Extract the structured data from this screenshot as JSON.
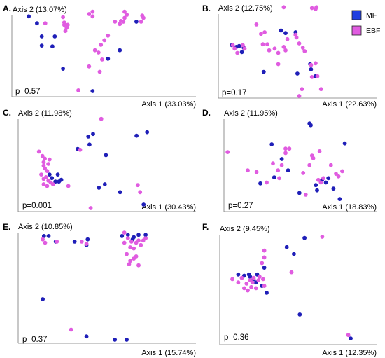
{
  "figure": {
    "legend": [
      {
        "key": "MF",
        "label": "MF",
        "color": "#1f1fb8"
      },
      {
        "key": "EBF",
        "label": "EBF",
        "color": "#e05ce0"
      }
    ],
    "legend_placement": "top-right"
  },
  "chart_data": [
    {
      "type": "scatter",
      "panel": "A.",
      "ylabel": "Axis 2 (13.07%)",
      "xlabel": "Axis 1 (33.03%)",
      "pvalue": "p=0.57",
      "series": [
        {
          "name": "MF",
          "points": [
            [
              0.03,
              0.97
            ],
            [
              0.1,
              0.88
            ],
            [
              0.14,
              0.71
            ],
            [
              0.14,
              0.59
            ],
            [
              0.23,
              0.58
            ],
            [
              0.25,
              0.71
            ],
            [
              0.32,
              0.29
            ],
            [
              0.57,
              0.0
            ],
            [
              0.7,
              0.42
            ],
            [
              0.8,
              0.53
            ],
            [
              0.94,
              0.9
            ]
          ]
        },
        {
          "name": "EBF",
          "points": [
            [
              0.17,
              0.88
            ],
            [
              0.32,
              0.96
            ],
            [
              0.33,
              0.89
            ],
            [
              0.33,
              0.86
            ],
            [
              0.35,
              0.82
            ],
            [
              0.34,
              0.78
            ],
            [
              0.36,
              0.86
            ],
            [
              0.54,
              1.0
            ],
            [
              0.57,
              1.03
            ],
            [
              0.57,
              0.97
            ],
            [
              0.45,
              0.01
            ],
            [
              0.54,
              0.32
            ],
            [
              0.59,
              0.53
            ],
            [
              0.62,
              0.5
            ],
            [
              0.65,
              0.41
            ],
            [
              0.63,
              0.25
            ],
            [
              0.64,
              0.6
            ],
            [
              0.67,
              0.66
            ],
            [
              0.7,
              0.72
            ],
            [
              0.76,
              0.9
            ],
            [
              0.8,
              0.87
            ],
            [
              0.81,
              0.91
            ],
            [
              0.83,
              0.9
            ],
            [
              0.84,
              0.95
            ],
            [
              0.86,
              0.99
            ],
            [
              0.84,
              1.03
            ],
            [
              0.98,
              0.9
            ],
            [
              1.0,
              0.95
            ],
            [
              0.99,
              0.98
            ]
          ]
        }
      ]
    },
    {
      "type": "scatter",
      "panel": "B.",
      "ylabel": "Axis 2 (12.75%)",
      "xlabel": "Axis 1 (22.63%)",
      "pvalue": "p=0.17",
      "series": [
        {
          "name": "MF",
          "points": [
            [
              0.01,
              0.59
            ],
            [
              0.06,
              0.57
            ],
            [
              0.09,
              0.58
            ],
            [
              0.12,
              0.51
            ],
            [
              0.14,
              0.56
            ],
            [
              0.36,
              0.28
            ],
            [
              0.55,
              0.76
            ],
            [
              0.6,
              0.73
            ],
            [
              0.71,
              0.74
            ],
            [
              0.73,
              0.26
            ],
            [
              0.88,
              0.31
            ],
            [
              0.93,
              0.23
            ],
            [
              0.87,
              0.37
            ]
          ]
        },
        {
          "name": "EBF",
          "points": [
            [
              0.02,
              0.59
            ],
            [
              0.04,
              0.55
            ],
            [
              0.07,
              0.5
            ],
            [
              0.13,
              0.59
            ],
            [
              0.15,
              0.55
            ],
            [
              0.28,
              0.83
            ],
            [
              0.33,
              0.72
            ],
            [
              0.37,
              0.74
            ],
            [
              0.35,
              0.6
            ],
            [
              0.4,
              0.6
            ],
            [
              0.42,
              0.53
            ],
            [
              0.48,
              0.55
            ],
            [
              0.52,
              0.5
            ],
            [
              0.52,
              0.37
            ],
            [
              0.58,
              0.57
            ],
            [
              0.6,
              0.53
            ],
            [
              0.62,
              0.66
            ],
            [
              0.71,
              0.71
            ],
            [
              0.72,
              0.68
            ],
            [
              0.75,
              0.61
            ],
            [
              0.79,
              0.56
            ],
            [
              0.81,
              0.52
            ],
            [
              0.88,
              0.36
            ],
            [
              0.93,
              0.38
            ],
            [
              0.89,
              0.22
            ],
            [
              0.75,
              0.0
            ],
            [
              0.78,
              0.08
            ],
            [
              0.58,
              1.03
            ],
            [
              0.89,
              1.02
            ],
            [
              0.94,
              1.03
            ],
            [
              0.93,
              1.01
            ],
            [
              0.95,
              0.23
            ],
            [
              0.99,
              0.08
            ]
          ]
        }
      ]
    },
    {
      "type": "scatter",
      "panel": "C.",
      "ylabel": "Axis 2 (11.98%)",
      "xlabel": "Axis 1 (30.43%)",
      "pvalue": "p=0.001",
      "series": [
        {
          "name": "MF",
          "points": [
            [
              0.1,
              0.38
            ],
            [
              0.12,
              0.34
            ],
            [
              0.15,
              0.3
            ],
            [
              0.17,
              0.38
            ],
            [
              0.18,
              0.3
            ],
            [
              0.2,
              0.32
            ],
            [
              0.34,
              0.67
            ],
            [
              0.43,
              0.81
            ],
            [
              0.44,
              0.72
            ],
            [
              0.47,
              0.84
            ],
            [
              0.58,
              0.6
            ],
            [
              0.52,
              0.23
            ],
            [
              0.57,
              0.27
            ],
            [
              0.7,
              0.18
            ],
            [
              0.84,
              0.82
            ],
            [
              0.93,
              0.86
            ],
            [
              0.9,
              0.04
            ]
          ]
        },
        {
          "name": "EBF",
          "points": [
            [
              0.01,
              0.64
            ],
            [
              0.04,
              0.59
            ],
            [
              0.05,
              0.52
            ],
            [
              0.05,
              0.48
            ],
            [
              0.06,
              0.45
            ],
            [
              0.06,
              0.56
            ],
            [
              0.08,
              0.42
            ],
            [
              0.09,
              0.5
            ],
            [
              0.1,
              0.55
            ],
            [
              0.03,
              0.38
            ],
            [
              0.05,
              0.33
            ],
            [
              0.05,
              0.27
            ],
            [
              0.08,
              0.25
            ],
            [
              0.07,
              0.35
            ],
            [
              0.09,
              0.31
            ],
            [
              0.11,
              0.29
            ],
            [
              0.13,
              0.27
            ],
            [
              0.26,
              0.25
            ],
            [
              0.36,
              0.66
            ],
            [
              0.54,
              1.01
            ],
            [
              0.45,
              0.0
            ],
            [
              0.85,
              0.26
            ],
            [
              0.87,
              0.18
            ]
          ]
        }
      ]
    },
    {
      "type": "scatter",
      "panel": "D.",
      "ylabel": "Axis 2 (11.95%)",
      "xlabel": "Axis 1 (18.83%)",
      "pvalue": "p=0.27",
      "series": [
        {
          "name": "MF",
          "points": [
            [
              0.3,
              0.26
            ],
            [
              0.39,
              0.71
            ],
            [
              0.41,
              0.33
            ],
            [
              0.47,
              0.54
            ],
            [
              0.52,
              0.41
            ],
            [
              0.61,
              0.15
            ],
            [
              0.69,
              0.95
            ],
            [
              0.7,
              0.93
            ],
            [
              0.74,
              0.24
            ],
            [
              0.75,
              0.18
            ],
            [
              0.79,
              0.3
            ],
            [
              0.82,
              0.27
            ],
            [
              0.84,
              0.32
            ],
            [
              0.88,
              0.2
            ],
            [
              0.93,
              0.08
            ],
            [
              0.97,
              0.72
            ]
          ]
        },
        {
          "name": "EBF",
          "points": [
            [
              0.04,
              0.62
            ],
            [
              0.2,
              0.41
            ],
            [
              0.27,
              0.39
            ],
            [
              0.35,
              0.27
            ],
            [
              0.4,
              0.49
            ],
            [
              0.44,
              0.41
            ],
            [
              0.45,
              0.32
            ],
            [
              0.47,
              0.47
            ],
            [
              0.5,
              0.66
            ],
            [
              0.5,
              0.61
            ],
            [
              0.53,
              0.66
            ],
            [
              0.64,
              0.38
            ],
            [
              0.66,
              0.13
            ],
            [
              0.69,
              0.47
            ],
            [
              0.71,
              0.58
            ],
            [
              0.72,
              0.55
            ],
            [
              0.76,
              0.3
            ],
            [
              0.78,
              0.27
            ],
            [
              0.77,
              0.63
            ],
            [
              0.86,
              0.47
            ],
            [
              0.9,
              0.37
            ],
            [
              0.92,
              0.34
            ],
            [
              0.95,
              0.4
            ],
            [
              0.8,
              0.32
            ]
          ]
        }
      ]
    },
    {
      "type": "scatter",
      "panel": "E.",
      "ylabel": "Axis 2 (10.85%)",
      "xlabel": "Axis 1 (15.74%)",
      "pvalue": "p=0.37",
      "series": [
        {
          "name": "MF",
          "points": [
            [
              0.04,
              0.92
            ],
            [
              0.08,
              0.92
            ],
            [
              0.14,
              0.87
            ],
            [
              0.3,
              0.87
            ],
            [
              0.4,
              0.84
            ],
            [
              0.41,
              0.89
            ],
            [
              0.7,
              0.92
            ],
            [
              0.75,
              0.93
            ],
            [
              0.8,
              0.91
            ],
            [
              0.79,
              0.89
            ],
            [
              0.84,
              0.93
            ],
            [
              0.9,
              0.93
            ],
            [
              0.03,
              0.36
            ],
            [
              0.4,
              0.03
            ],
            [
              0.64,
              0.0
            ],
            [
              0.74,
              0.0
            ]
          ]
        },
        {
          "name": "EBF",
          "points": [
            [
              0.03,
              0.89
            ],
            [
              0.05,
              0.86
            ],
            [
              0.15,
              0.87
            ],
            [
              0.36,
              0.87
            ],
            [
              0.4,
              0.85
            ],
            [
              0.72,
              0.95
            ],
            [
              0.75,
              0.9
            ],
            [
              0.78,
              0.87
            ],
            [
              0.72,
              0.86
            ],
            [
              0.77,
              0.82
            ],
            [
              0.8,
              0.81
            ],
            [
              0.82,
              0.86
            ],
            [
              0.84,
              0.88
            ],
            [
              0.86,
              0.84
            ],
            [
              0.88,
              0.88
            ],
            [
              0.9,
              0.9
            ],
            [
              0.74,
              0.76
            ],
            [
              0.77,
              0.7
            ],
            [
              0.8,
              0.72
            ],
            [
              0.82,
              0.74
            ],
            [
              0.76,
              0.67
            ],
            [
              0.84,
              0.66
            ],
            [
              0.27,
              0.09
            ]
          ]
        }
      ]
    },
    {
      "type": "scatter",
      "panel": "F.",
      "ylabel": "Axis 2 (9.45%)",
      "xlabel": "Axis 1 (12.35%)",
      "pvalue": "p=0.36",
      "series": [
        {
          "name": "MF",
          "points": [
            [
              0.05,
              0.59
            ],
            [
              0.1,
              0.58
            ],
            [
              0.14,
              0.59
            ],
            [
              0.15,
              0.57
            ],
            [
              0.18,
              0.55
            ],
            [
              0.2,
              0.52
            ],
            [
              0.21,
              0.59
            ],
            [
              0.25,
              0.49
            ],
            [
              0.27,
              0.65
            ],
            [
              0.29,
              0.43
            ],
            [
              0.46,
              0.83
            ],
            [
              0.52,
              0.77
            ],
            [
              0.61,
              0.91
            ],
            [
              0.57,
              0.24
            ],
            [
              1.0,
              0.03
            ]
          ]
        },
        {
          "name": "EBF",
          "points": [
            [
              0.0,
              0.55
            ],
            [
              0.05,
              0.52
            ],
            [
              0.08,
              0.56
            ],
            [
              0.1,
              0.47
            ],
            [
              0.12,
              0.51
            ],
            [
              0.13,
              0.45
            ],
            [
              0.15,
              0.54
            ],
            [
              0.16,
              0.48
            ],
            [
              0.17,
              0.52
            ],
            [
              0.18,
              0.56
            ],
            [
              0.2,
              0.47
            ],
            [
              0.22,
              0.54
            ],
            [
              0.23,
              0.57
            ],
            [
              0.26,
              0.55
            ],
            [
              0.27,
              0.49
            ],
            [
              0.27,
              0.8
            ],
            [
              0.27,
              0.74
            ],
            [
              0.25,
              0.69
            ],
            [
              0.5,
              0.61
            ],
            [
              0.76,
              0.92
            ],
            [
              0.98,
              0.06
            ]
          ]
        }
      ]
    }
  ]
}
